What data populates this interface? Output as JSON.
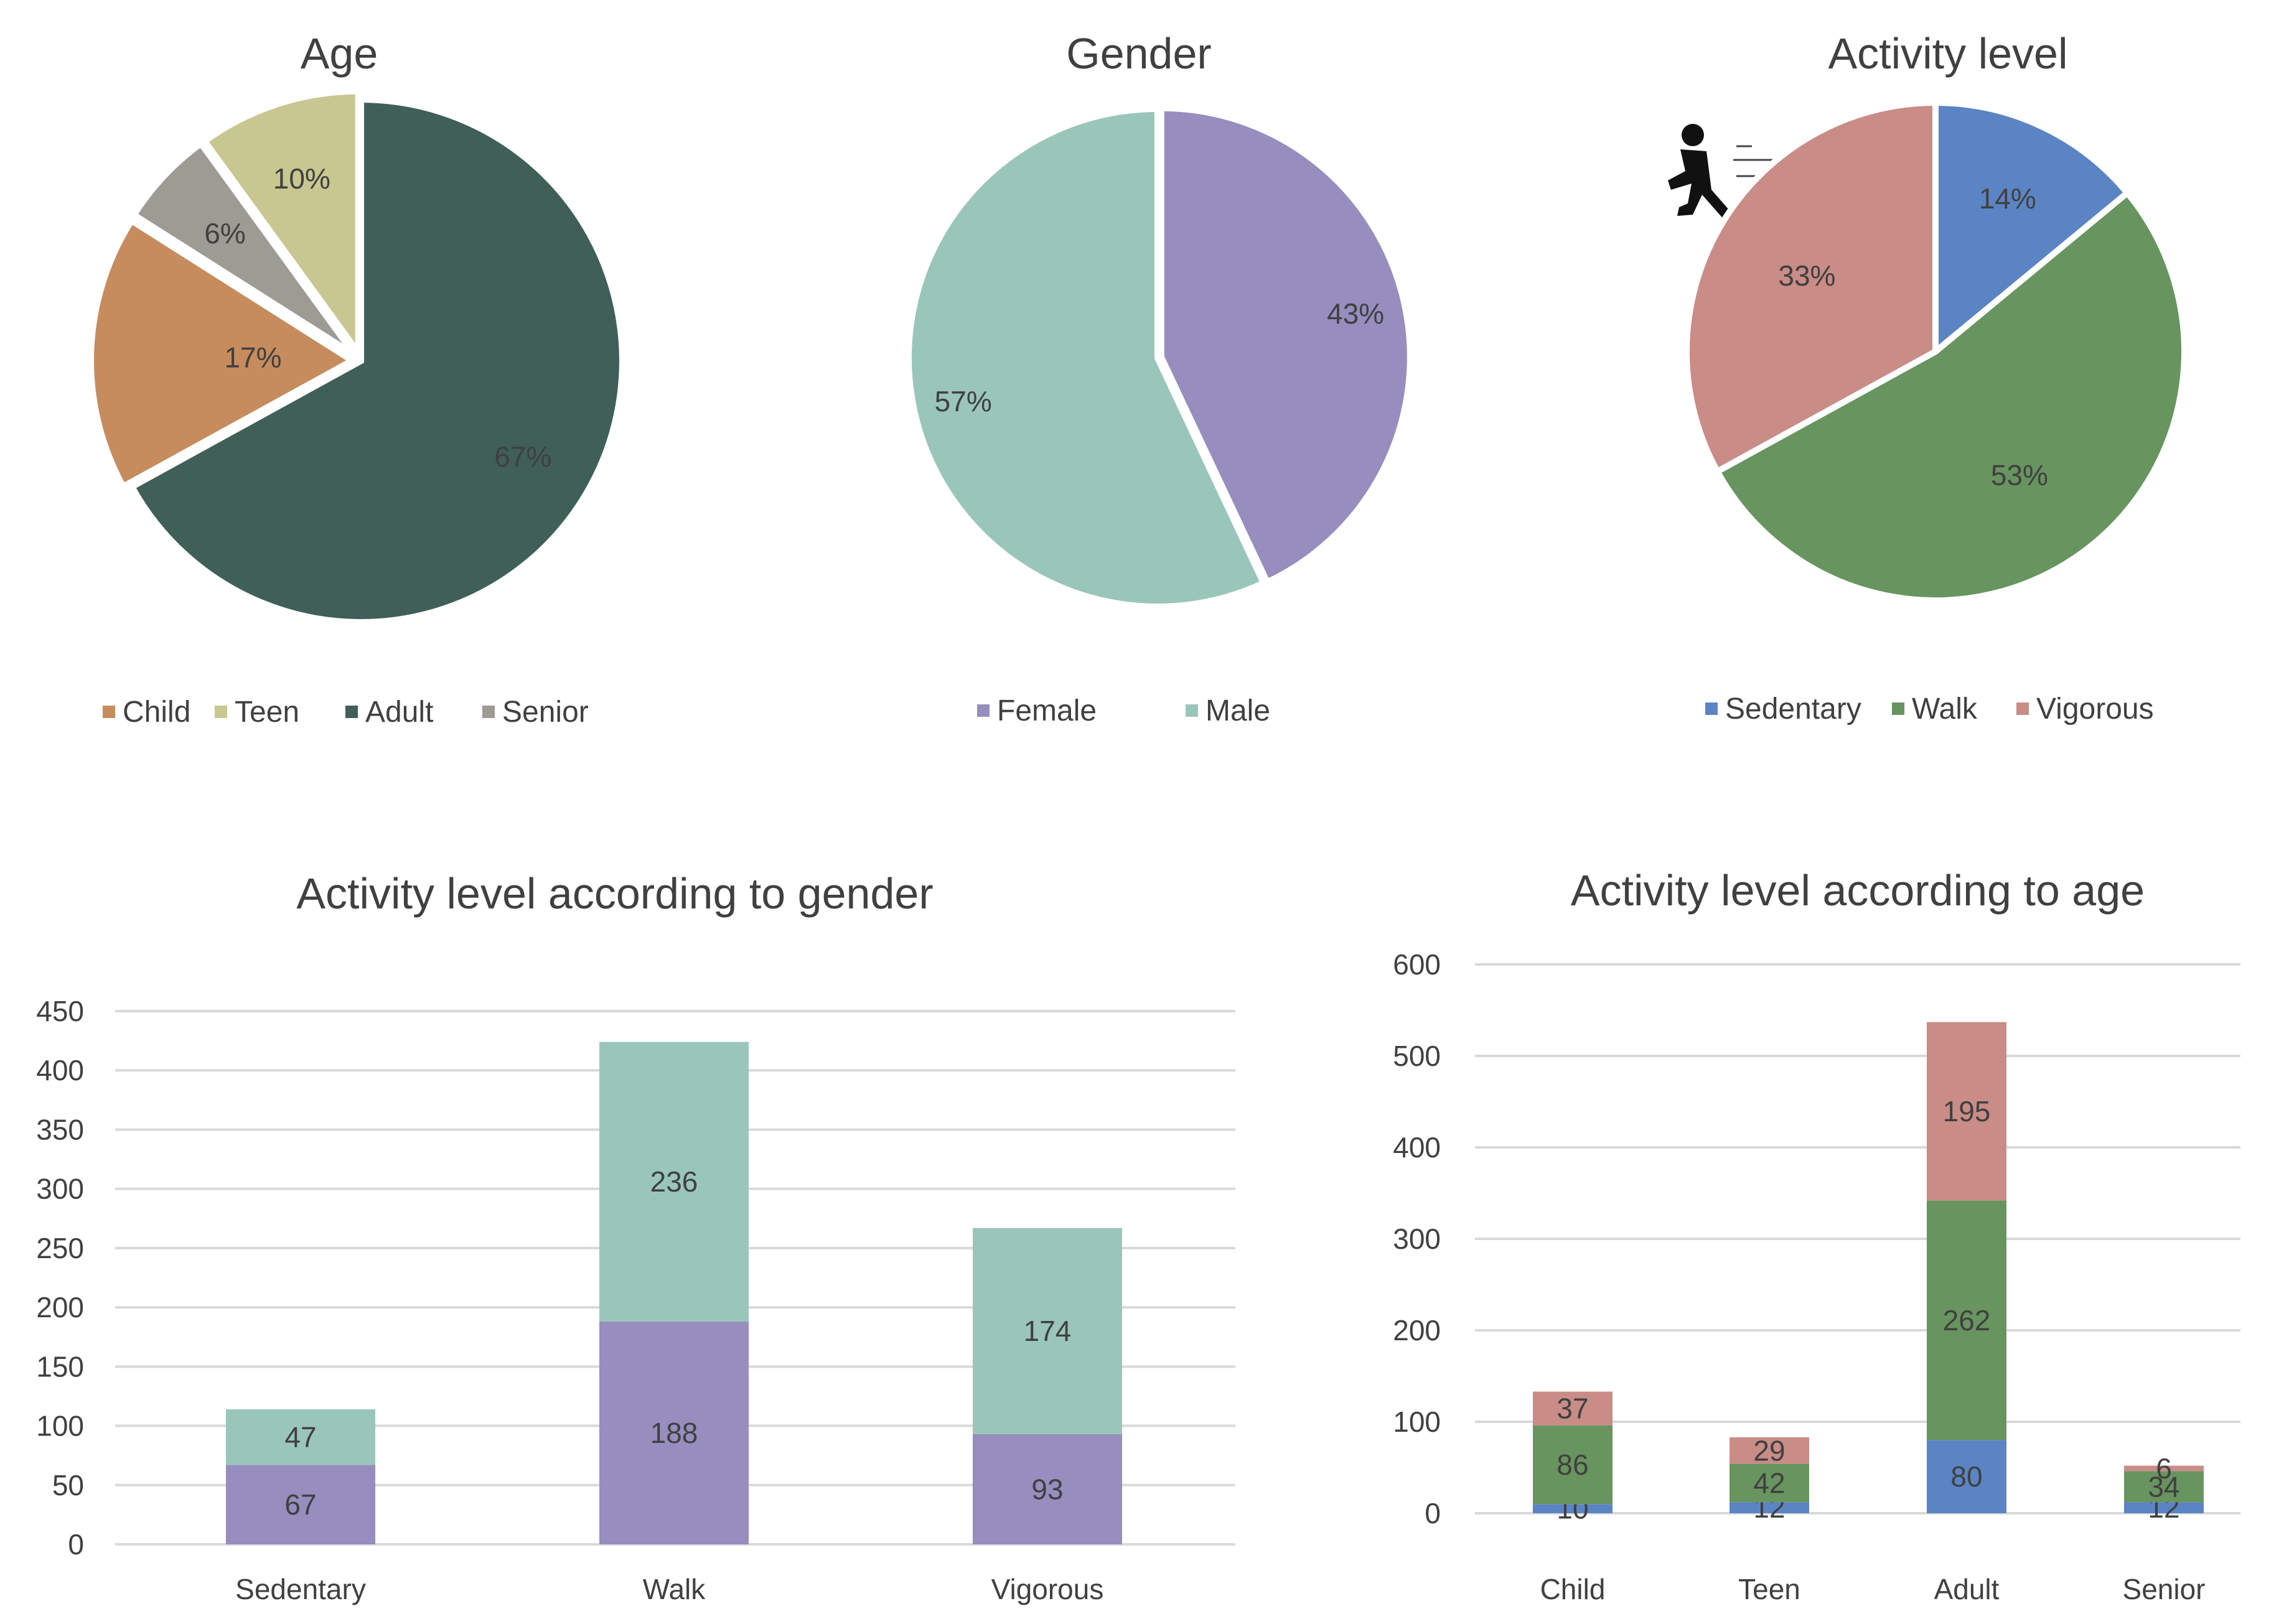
{
  "chart_data": [
    {
      "type": "pie",
      "title": "Age",
      "categories": [
        "Child",
        "Teen",
        "Adult",
        "Senior"
      ],
      "values": [
        17,
        10,
        67,
        6
      ],
      "labels": [
        "17%",
        "10%",
        "67%",
        "6%"
      ],
      "colors": [
        "#C68C5E",
        "#C8C791",
        "#3F5F58",
        "#9E9A94"
      ],
      "legend": "bottom"
    },
    {
      "type": "pie",
      "title": "Gender",
      "categories": [
        "Female",
        "Male"
      ],
      "values": [
        43,
        57
      ],
      "labels": [
        "43%",
        "57%"
      ],
      "colors": [
        "#978DBF",
        "#9AC6BA"
      ],
      "legend": "bottom"
    },
    {
      "type": "pie",
      "title": "Activity level",
      "categories": [
        "Sedentary",
        "Walk",
        "Vigorous"
      ],
      "values": [
        14,
        53,
        33
      ],
      "labels": [
        "14%",
        "53%",
        "33%"
      ],
      "colors": [
        "#5B84C4",
        "#68945F",
        "#C98C87"
      ],
      "legend": "bottom",
      "icon": "running-person-icon"
    },
    {
      "type": "bar",
      "stacked": true,
      "title": "Activity level according to gender",
      "categories": [
        "Sedentary",
        "Walk",
        "Vigorous"
      ],
      "series": [
        {
          "name": "Female",
          "values": [
            67,
            188,
            93
          ],
          "color": "#978DBF"
        },
        {
          "name": "Male",
          "values": [
            47,
            236,
            174
          ],
          "color": "#9AC6BA"
        }
      ],
      "ylim": [
        0,
        450
      ],
      "yticks": [
        "0",
        "50",
        "100",
        "150",
        "200",
        "250",
        "300",
        "350",
        "400",
        "450"
      ],
      "grid": true
    },
    {
      "type": "bar",
      "stacked": true,
      "title": "Activity level according to age",
      "categories": [
        "Child",
        "Teen",
        "Adult",
        "Senior"
      ],
      "series": [
        {
          "name": "Sedentary",
          "values": [
            10,
            12,
            80,
            12
          ],
          "color": "#5B84C4"
        },
        {
          "name": "Walk",
          "values": [
            86,
            42,
            262,
            34
          ],
          "color": "#68945F"
        },
        {
          "name": "Vigorous",
          "values": [
            37,
            29,
            195,
            6
          ],
          "color": "#C98C87"
        }
      ],
      "ylim": [
        0,
        600
      ],
      "yticks": [
        "0",
        "100",
        "200",
        "300",
        "400",
        "500",
        "600"
      ],
      "grid": true
    }
  ]
}
